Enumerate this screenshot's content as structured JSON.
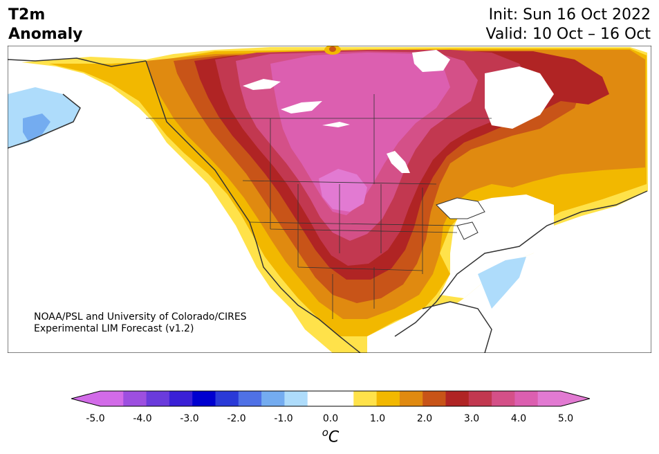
{
  "header": {
    "title_line1": "T2m",
    "title_line2": "Anomaly",
    "init": "Init: Sun 16 Oct 2022",
    "valid": "Valid: 10 Oct – 16 Oct"
  },
  "credit": {
    "line1": "NOAA/PSL and University of Colorado/CIRES",
    "line2": "Experimental LIM Forecast (v1.2)"
  },
  "colorbar": {
    "unit_base": "C",
    "unit_sup": "o",
    "ticks": [
      "-5.0",
      "-4.0",
      "-3.0",
      "-2.0",
      "-1.0",
      "0.0",
      "1.0",
      "2.0",
      "3.0",
      "4.0",
      "5.0"
    ],
    "colors": [
      "#d26be8",
      "#9d4fe0",
      "#6a3bdc",
      "#3a20d6",
      "#0000d0",
      "#2a3ad8",
      "#4f71e6",
      "#74acf0",
      "#aedcfb",
      "#ffffff",
      "#ffffff",
      "#ffe24a",
      "#f2b800",
      "#e08a10",
      "#c85418",
      "#b02424",
      "#c23850",
      "#d45088",
      "#dc5fb0",
      "#e27ad2"
    ],
    "low_extend_color": "#d26be8",
    "high_extend_color": "#e27ad2"
  },
  "map_colors": {
    "ocean": "#ffffff",
    "coast": "#333333",
    "yellow": "#ffe24a",
    "gold": "#f2b800",
    "orange": "#e08a10",
    "dark_orange": "#c85418",
    "dark_red": "#b02424",
    "crimson": "#c23850",
    "rose": "#d45088",
    "pink": "#dc5fb0",
    "magenta": "#e27ad2",
    "light_blue": "#aedcfb",
    "mid_blue": "#74acf0"
  }
}
